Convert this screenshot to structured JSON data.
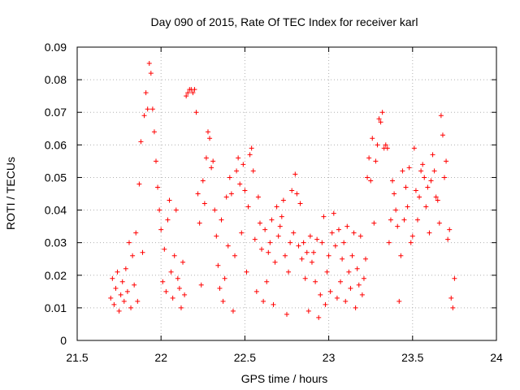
{
  "chart_data": {
    "type": "scatter",
    "title": "Day 090 of 2015, Rate Of TEC Index for receiver karl",
    "xlabel": "GPS time / hours",
    "ylabel": "ROTI / TECUs",
    "xlim": [
      21.5,
      24
    ],
    "ylim": [
      0,
      0.09
    ],
    "x_ticks": [
      "21.5",
      "22",
      "22.5",
      "23",
      "23.5",
      "24"
    ],
    "y_ticks": [
      "0",
      "0.01",
      "0.02",
      "0.03",
      "0.04",
      "0.05",
      "0.06",
      "0.07",
      "0.08",
      "0.09"
    ],
    "grid": true,
    "marker": "+",
    "marker_color": "#ff0000",
    "series": [
      {
        "name": "ROTI",
        "points": [
          [
            21.7,
            0.013
          ],
          [
            21.71,
            0.019
          ],
          [
            21.72,
            0.011
          ],
          [
            21.73,
            0.016
          ],
          [
            21.74,
            0.021
          ],
          [
            21.75,
            0.009
          ],
          [
            21.76,
            0.014
          ],
          [
            21.77,
            0.018
          ],
          [
            21.78,
            0.012
          ],
          [
            21.79,
            0.022
          ],
          [
            21.8,
            0.015
          ],
          [
            21.81,
            0.03
          ],
          [
            21.82,
            0.01
          ],
          [
            21.83,
            0.026
          ],
          [
            21.84,
            0.017
          ],
          [
            21.85,
            0.033
          ],
          [
            21.86,
            0.012
          ],
          [
            21.87,
            0.048
          ],
          [
            21.88,
            0.061
          ],
          [
            21.89,
            0.027
          ],
          [
            21.9,
            0.069
          ],
          [
            21.91,
            0.076
          ],
          [
            21.92,
            0.071
          ],
          [
            21.93,
            0.085
          ],
          [
            21.94,
            0.082
          ],
          [
            21.95,
            0.071
          ],
          [
            21.96,
            0.064
          ],
          [
            21.97,
            0.055
          ],
          [
            21.98,
            0.047
          ],
          [
            21.99,
            0.04
          ],
          [
            22.0,
            0.034
          ],
          [
            22.01,
            0.018
          ],
          [
            22.02,
            0.028
          ],
          [
            22.03,
            0.015
          ],
          [
            22.04,
            0.037
          ],
          [
            22.05,
            0.043
          ],
          [
            22.06,
            0.021
          ],
          [
            22.07,
            0.013
          ],
          [
            22.08,
            0.026
          ],
          [
            22.09,
            0.04
          ],
          [
            22.1,
            0.019
          ],
          [
            22.11,
            0.016
          ],
          [
            22.12,
            0.01
          ],
          [
            22.13,
            0.024
          ],
          [
            22.14,
            0.014
          ],
          [
            22.15,
            0.075
          ],
          [
            22.16,
            0.076
          ],
          [
            22.17,
            0.077
          ],
          [
            22.18,
            0.077
          ],
          [
            22.19,
            0.076
          ],
          [
            22.2,
            0.077
          ],
          [
            22.21,
            0.07
          ],
          [
            22.22,
            0.045
          ],
          [
            22.23,
            0.036
          ],
          [
            22.24,
            0.017
          ],
          [
            22.25,
            0.049
          ],
          [
            22.26,
            0.042
          ],
          [
            22.27,
            0.056
          ],
          [
            22.28,
            0.064
          ],
          [
            22.29,
            0.062
          ],
          [
            22.3,
            0.053
          ],
          [
            22.31,
            0.055
          ],
          [
            22.32,
            0.04
          ],
          [
            22.33,
            0.032
          ],
          [
            22.34,
            0.023
          ],
          [
            22.35,
            0.016
          ],
          [
            22.36,
            0.037
          ],
          [
            22.37,
            0.012
          ],
          [
            22.38,
            0.019
          ],
          [
            22.39,
            0.044
          ],
          [
            22.4,
            0.029
          ],
          [
            22.41,
            0.05
          ],
          [
            22.42,
            0.045
          ],
          [
            22.43,
            0.009
          ],
          [
            22.44,
            0.026
          ],
          [
            22.45,
            0.052
          ],
          [
            22.46,
            0.056
          ],
          [
            22.47,
            0.048
          ],
          [
            22.48,
            0.033
          ],
          [
            22.49,
            0.054
          ],
          [
            22.5,
            0.046
          ],
          [
            22.51,
            0.021
          ],
          [
            22.52,
            0.041
          ],
          [
            22.53,
            0.057
          ],
          [
            22.54,
            0.059
          ],
          [
            22.55,
            0.052
          ],
          [
            22.56,
            0.031
          ],
          [
            22.57,
            0.015
          ],
          [
            22.58,
            0.044
          ],
          [
            22.59,
            0.036
          ],
          [
            22.6,
            0.028
          ],
          [
            22.61,
            0.012
          ],
          [
            22.62,
            0.034
          ],
          [
            22.63,
            0.018
          ],
          [
            22.64,
            0.027
          ],
          [
            22.65,
            0.03
          ],
          [
            22.66,
            0.037
          ],
          [
            22.67,
            0.011
          ],
          [
            22.68,
            0.024
          ],
          [
            22.69,
            0.041
          ],
          [
            22.7,
            0.032
          ],
          [
            22.71,
            0.035
          ],
          [
            22.72,
            0.038
          ],
          [
            22.73,
            0.043
          ],
          [
            22.74,
            0.026
          ],
          [
            22.75,
            0.008
          ],
          [
            22.76,
            0.021
          ],
          [
            22.77,
            0.03
          ],
          [
            22.78,
            0.046
          ],
          [
            22.79,
            0.033
          ],
          [
            22.8,
            0.051
          ],
          [
            22.81,
            0.045
          ],
          [
            22.82,
            0.029
          ],
          [
            22.83,
            0.042
          ],
          [
            22.84,
            0.025
          ],
          [
            22.85,
            0.03
          ],
          [
            22.86,
            0.019
          ],
          [
            22.87,
            0.027
          ],
          [
            22.88,
            0.009
          ],
          [
            22.89,
            0.032
          ],
          [
            22.9,
            0.024
          ],
          [
            22.91,
            0.027
          ],
          [
            22.92,
            0.018
          ],
          [
            22.93,
            0.031
          ],
          [
            22.94,
            0.007
          ],
          [
            22.95,
            0.014
          ],
          [
            22.96,
            0.03
          ],
          [
            22.97,
            0.038
          ],
          [
            22.98,
            0.011
          ],
          [
            22.99,
            0.021
          ],
          [
            23.0,
            0.026
          ],
          [
            23.01,
            0.015
          ],
          [
            23.02,
            0.033
          ],
          [
            23.03,
            0.039
          ],
          [
            23.04,
            0.029
          ],
          [
            23.05,
            0.013
          ],
          [
            23.06,
            0.034
          ],
          [
            23.07,
            0.018
          ],
          [
            23.08,
            0.025
          ],
          [
            23.09,
            0.03
          ],
          [
            23.1,
            0.012
          ],
          [
            23.11,
            0.035
          ],
          [
            23.12,
            0.021
          ],
          [
            23.13,
            0.016
          ],
          [
            23.14,
            0.026
          ],
          [
            23.15,
            0.033
          ],
          [
            23.16,
            0.01
          ],
          [
            23.17,
            0.022
          ],
          [
            23.18,
            0.017
          ],
          [
            23.19,
            0.032
          ],
          [
            23.2,
            0.014
          ],
          [
            23.21,
            0.019
          ],
          [
            23.22,
            0.025
          ],
          [
            23.23,
            0.05
          ],
          [
            23.24,
            0.056
          ],
          [
            23.25,
            0.049
          ],
          [
            23.26,
            0.062
          ],
          [
            23.27,
            0.036
          ],
          [
            23.28,
            0.055
          ],
          [
            23.29,
            0.06
          ],
          [
            23.3,
            0.068
          ],
          [
            23.31,
            0.067
          ],
          [
            23.32,
            0.07
          ],
          [
            23.33,
            0.059
          ],
          [
            23.34,
            0.06
          ],
          [
            23.35,
            0.059
          ],
          [
            23.36,
            0.03
          ],
          [
            23.37,
            0.037
          ],
          [
            23.38,
            0.049
          ],
          [
            23.39,
            0.045
          ],
          [
            23.4,
            0.04
          ],
          [
            23.41,
            0.035
          ],
          [
            23.42,
            0.012
          ],
          [
            23.43,
            0.026
          ],
          [
            23.44,
            0.052
          ],
          [
            23.45,
            0.037
          ],
          [
            23.46,
            0.047
          ],
          [
            23.47,
            0.041
          ],
          [
            23.48,
            0.053
          ],
          [
            23.49,
            0.03
          ],
          [
            23.5,
            0.032
          ],
          [
            23.51,
            0.059
          ],
          [
            23.52,
            0.046
          ],
          [
            23.53,
            0.037
          ],
          [
            23.54,
            0.044
          ],
          [
            23.55,
            0.052
          ],
          [
            23.56,
            0.054
          ],
          [
            23.57,
            0.05
          ],
          [
            23.58,
            0.041
          ],
          [
            23.59,
            0.047
          ],
          [
            23.6,
            0.033
          ],
          [
            23.61,
            0.049
          ],
          [
            23.62,
            0.057
          ],
          [
            23.63,
            0.052
          ],
          [
            23.64,
            0.044
          ],
          [
            23.65,
            0.043
          ],
          [
            23.66,
            0.036
          ],
          [
            23.67,
            0.069
          ],
          [
            23.68,
            0.063
          ],
          [
            23.69,
            0.05
          ],
          [
            23.7,
            0.055
          ],
          [
            23.71,
            0.031
          ],
          [
            23.72,
            0.034
          ],
          [
            23.73,
            0.013
          ],
          [
            23.74,
            0.01
          ],
          [
            23.75,
            0.019
          ]
        ]
      }
    ]
  }
}
